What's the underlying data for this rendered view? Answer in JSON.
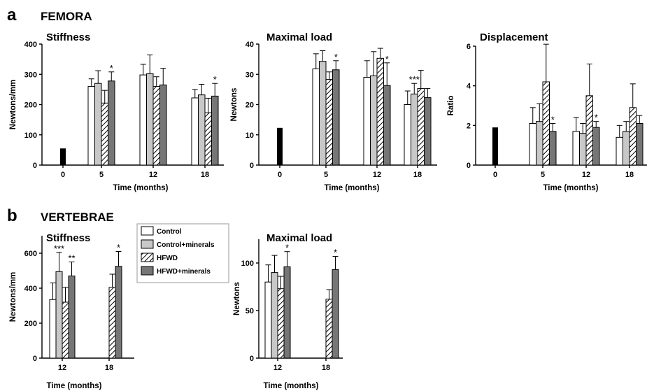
{
  "panel_a": {
    "letter": "a",
    "title": "FEMORA"
  },
  "panel_b": {
    "letter": "b",
    "title": "VERTEBRAE"
  },
  "legend": {
    "items": [
      {
        "label": "Control",
        "style": "white"
      },
      {
        "label": "Control+minerals",
        "style": "lightgray"
      },
      {
        "label": "HFWD",
        "style": "hatch"
      },
      {
        "label": "HFWD+minerals",
        "style": "darkgray"
      }
    ]
  },
  "colors": {
    "white": "#ffffff",
    "lightgray": "#c8c8c8",
    "darkgray": "#767676",
    "baseline": "#000000"
  },
  "chart_data": [
    {
      "id": "fem-stiff",
      "type": "bar",
      "panel": "a",
      "title": "Stiffness",
      "xlabel": "Time (months)",
      "ylabel": "Newtons/mm",
      "ylim": [
        0,
        400
      ],
      "yticks": [
        0,
        100,
        200,
        300,
        400
      ],
      "baseline": {
        "category": "0",
        "value": 55,
        "error": 0
      },
      "categories": [
        "5",
        "12",
        "18"
      ],
      "series": [
        {
          "name": "Control",
          "values": [
            260,
            298,
            222
          ],
          "errors": [
            25,
            35,
            28
          ]
        },
        {
          "name": "Control+minerals",
          "values": [
            270,
            302,
            232
          ],
          "errors": [
            42,
            62,
            35
          ]
        },
        {
          "name": "HFWD",
          "values": [
            205,
            260,
            173
          ],
          "errors": [
            42,
            32,
            48
          ]
        },
        {
          "name": "HFWD+minerals",
          "values": [
            278,
            265,
            228
          ],
          "errors": [
            30,
            55,
            42
          ]
        }
      ],
      "significance": [
        {
          "category": "5",
          "series": 3,
          "label": "*"
        },
        {
          "category": "18",
          "series": 3,
          "label": "*"
        }
      ]
    },
    {
      "id": "fem-maxload",
      "type": "bar",
      "panel": "a",
      "title": "Maximal load",
      "xlabel": "Time (months)",
      "ylabel": "Newtons",
      "ylim": [
        0,
        40
      ],
      "yticks": [
        0,
        10,
        20,
        30,
        40
      ],
      "baseline": {
        "category": "0",
        "value": 12.3,
        "error": 0
      },
      "categories": [
        "5",
        "12",
        "18"
      ],
      "series": [
        {
          "name": "Control",
          "values": [
            31.8,
            29.0,
            20.0
          ],
          "errors": [
            5.0,
            5.5,
            4.5
          ]
        },
        {
          "name": "Control+minerals",
          "values": [
            34.3,
            29.5,
            23.5
          ],
          "errors": [
            3.5,
            8.0,
            3.5
          ]
        },
        {
          "name": "HFWD",
          "values": [
            28.3,
            35.3,
            25.3
          ],
          "errors": [
            2.5,
            3.3,
            6.0
          ]
        },
        {
          "name": "HFWD+minerals",
          "values": [
            31.5,
            26.3,
            22.3
          ],
          "errors": [
            3.0,
            7.5,
            3.0
          ]
        }
      ],
      "significance": [
        {
          "category": "5",
          "series": 3,
          "label": "*"
        },
        {
          "category": "12",
          "series": 3,
          "label": "*"
        },
        {
          "category": "18",
          "series": 1,
          "label": "***"
        }
      ]
    },
    {
      "id": "fem-disp",
      "type": "bar",
      "panel": "a",
      "title": "Displacement",
      "xlabel": "Time (months)",
      "ylabel": "Ratio",
      "ylim": [
        0,
        6
      ],
      "yticks": [
        0,
        2,
        4,
        6
      ],
      "baseline": {
        "category": "0",
        "value": 1.9,
        "error": 0
      },
      "categories": [
        "5",
        "12",
        "18"
      ],
      "series": [
        {
          "name": "Control",
          "values": [
            2.1,
            1.7,
            1.4
          ],
          "errors": [
            0.8,
            0.7,
            0.6
          ]
        },
        {
          "name": "Control+minerals",
          "values": [
            2.2,
            1.6,
            1.7
          ],
          "errors": [
            0.9,
            0.5,
            0.5
          ]
        },
        {
          "name": "HFWD",
          "values": [
            4.2,
            3.5,
            2.9
          ],
          "errors": [
            1.9,
            1.6,
            1.2
          ]
        },
        {
          "name": "HFWD+minerals",
          "values": [
            1.7,
            1.9,
            2.1
          ],
          "errors": [
            0.4,
            0.3,
            0.4
          ]
        }
      ],
      "significance": [
        {
          "category": "5",
          "series": 3,
          "label": "*"
        },
        {
          "category": "12",
          "series": 3,
          "label": "*"
        }
      ]
    },
    {
      "id": "vert-stiff",
      "type": "bar",
      "panel": "b",
      "title": "Stiffness",
      "xlabel": "Time (months)",
      "ylabel": "Newtons/mm",
      "ylim": [
        0,
        700
      ],
      "yticks": [
        0,
        200,
        400,
        600
      ],
      "categories": [
        "12",
        "18"
      ],
      "series": [
        {
          "name": "Control",
          "values": [
            335,
            null
          ],
          "errors": [
            95,
            null
          ]
        },
        {
          "name": "Control+minerals",
          "values": [
            495,
            null
          ],
          "errors": [
            110,
            null
          ]
        },
        {
          "name": "HFWD",
          "values": [
            320,
            405
          ],
          "errors": [
            85,
            75
          ]
        },
        {
          "name": "HFWD+minerals",
          "values": [
            470,
            525
          ],
          "errors": [
            80,
            85
          ]
        }
      ],
      "significance": [
        {
          "category": "12",
          "series": 1,
          "label": "***"
        },
        {
          "category": "12",
          "series": 3,
          "label": "**"
        },
        {
          "category": "18",
          "series": 3,
          "label": "*"
        }
      ]
    },
    {
      "id": "vert-maxload",
      "type": "bar",
      "panel": "b",
      "title": "Maximal load",
      "xlabel": "Time (months)",
      "ylabel": "Newtons",
      "ylim": [
        0,
        125
      ],
      "yticks": [
        0,
        50,
        100
      ],
      "categories": [
        "12",
        "18"
      ],
      "series": [
        {
          "name": "Control",
          "values": [
            80,
            null
          ],
          "errors": [
            18,
            null
          ]
        },
        {
          "name": "Control+minerals",
          "values": [
            90,
            null
          ],
          "errors": [
            18,
            null
          ]
        },
        {
          "name": "HFWD",
          "values": [
            73,
            62
          ],
          "errors": [
            13,
            10
          ]
        },
        {
          "name": "HFWD+minerals",
          "values": [
            96,
            93
          ],
          "errors": [
            16,
            14
          ]
        }
      ],
      "significance": [
        {
          "category": "12",
          "series": 3,
          "label": "*"
        },
        {
          "category": "18",
          "series": 3,
          "label": "*"
        }
      ]
    }
  ]
}
